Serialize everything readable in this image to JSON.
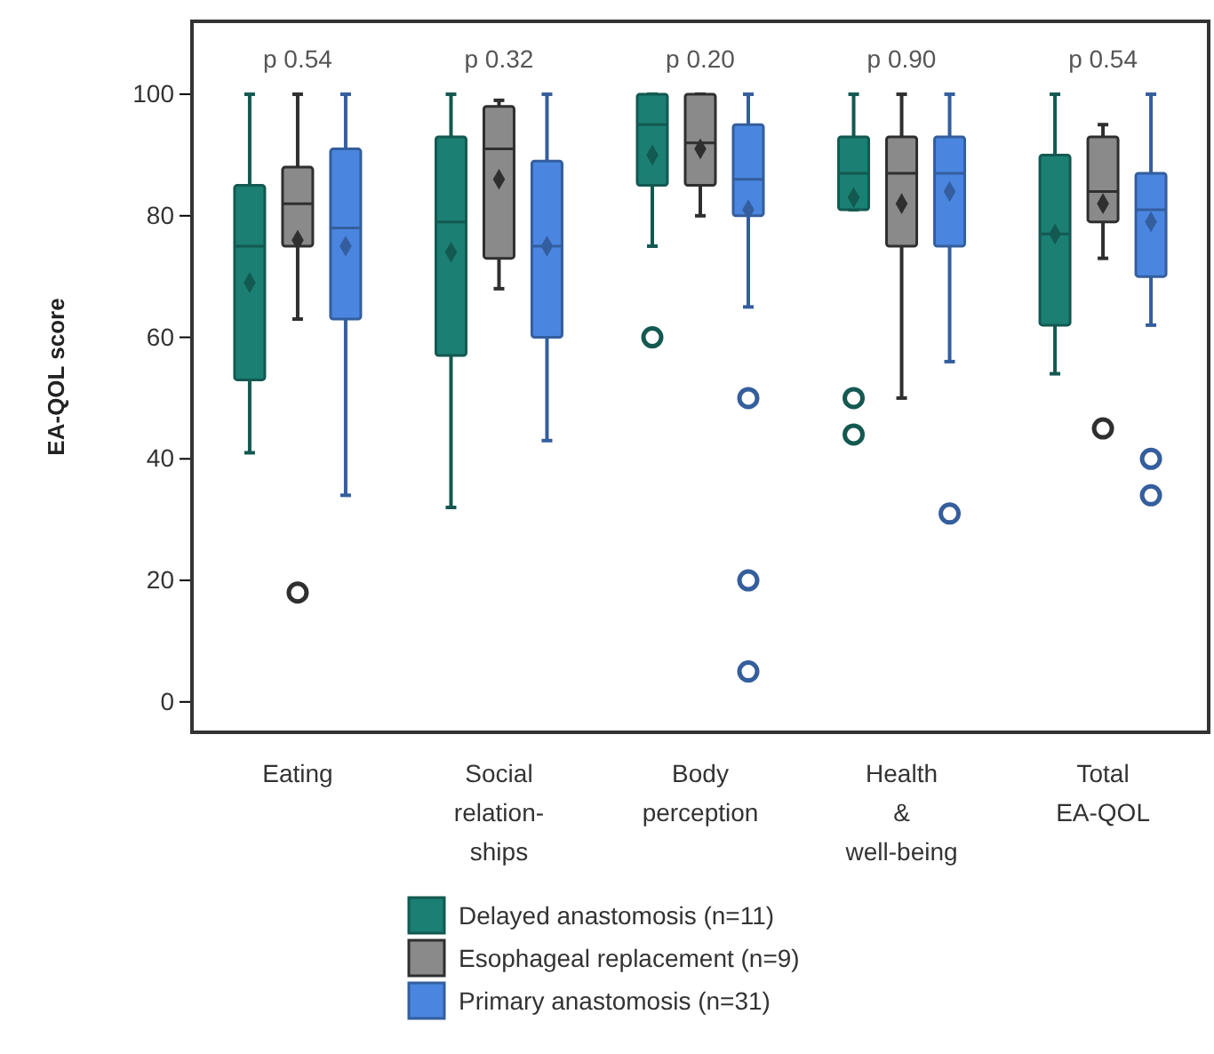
{
  "chart_data": {
    "type": "box",
    "ylabel": "EA-QOL score",
    "categories": [
      "Eating",
      "Social\nrelation-\nships",
      "Body\nperception",
      "Health\n&\nwell-being",
      "Total\nEA-QOL"
    ],
    "ylim": [
      -5,
      112
    ],
    "yticks": [
      0,
      20,
      40,
      60,
      80,
      100
    ],
    "grid": false,
    "legend": "bottom",
    "marker": "diamond",
    "annotations": [
      "p 0.54",
      "p 0.32",
      "p 0.20",
      "p 0.90",
      "p 0.54"
    ],
    "series": [
      {
        "name": "Delayed anastomosis (n=11)",
        "color": "#1b7f73",
        "boxes": [
          {
            "low": 41,
            "q1": 53,
            "median": 75,
            "q3": 85,
            "high": 100,
            "mean": 69
          },
          {
            "low": 32,
            "q1": 57,
            "median": 79,
            "q3": 93,
            "high": 100,
            "mean": 74
          },
          {
            "low": 75,
            "q1": 85,
            "median": 95,
            "q3": 100,
            "high": 100,
            "mean": 90,
            "outliers": [
              60
            ]
          },
          {
            "low": 81,
            "q1": 81,
            "median": 87,
            "q3": 93,
            "high": 100,
            "mean": 83,
            "outliers": [
              50,
              44
            ]
          },
          {
            "low": 54,
            "q1": 62,
            "median": 77,
            "q3": 90,
            "high": 100,
            "mean": 77
          }
        ]
      },
      {
        "name": "Esophageal replacement (n=9)",
        "color": "#8a8a8a",
        "boxes": [
          {
            "low": 63,
            "q1": 75,
            "median": 82,
            "q3": 88,
            "high": 100,
            "mean": 76,
            "outliers": [
              18
            ]
          },
          {
            "low": 68,
            "q1": 73,
            "median": 91,
            "q3": 98,
            "high": 99,
            "mean": 86
          },
          {
            "low": 80,
            "q1": 85,
            "median": 92,
            "q3": 100,
            "high": 100,
            "mean": 91
          },
          {
            "low": 50,
            "q1": 75,
            "median": 87,
            "q3": 93,
            "high": 100,
            "mean": 82
          },
          {
            "low": 73,
            "q1": 79,
            "median": 84,
            "q3": 93,
            "high": 95,
            "mean": 82,
            "outliers": [
              45
            ]
          }
        ]
      },
      {
        "name": "Primary anastomosis (n=31)",
        "color": "#4a86e0",
        "boxes": [
          {
            "low": 34,
            "q1": 63,
            "median": 78,
            "q3": 91,
            "high": 100,
            "mean": 75
          },
          {
            "low": 43,
            "q1": 60,
            "median": 75,
            "q3": 89,
            "high": 100,
            "mean": 75
          },
          {
            "low": 65,
            "q1": 80,
            "median": 86,
            "q3": 95,
            "high": 100,
            "mean": 81,
            "outliers": [
              50,
              20,
              5
            ]
          },
          {
            "low": 56,
            "q1": 75,
            "median": 87,
            "q3": 93,
            "high": 100,
            "mean": 84,
            "outliers": [
              31
            ]
          },
          {
            "low": 62,
            "q1": 70,
            "median": 81,
            "q3": 87,
            "high": 100,
            "mean": 79,
            "outliers": [
              40,
              34
            ]
          }
        ]
      }
    ]
  }
}
